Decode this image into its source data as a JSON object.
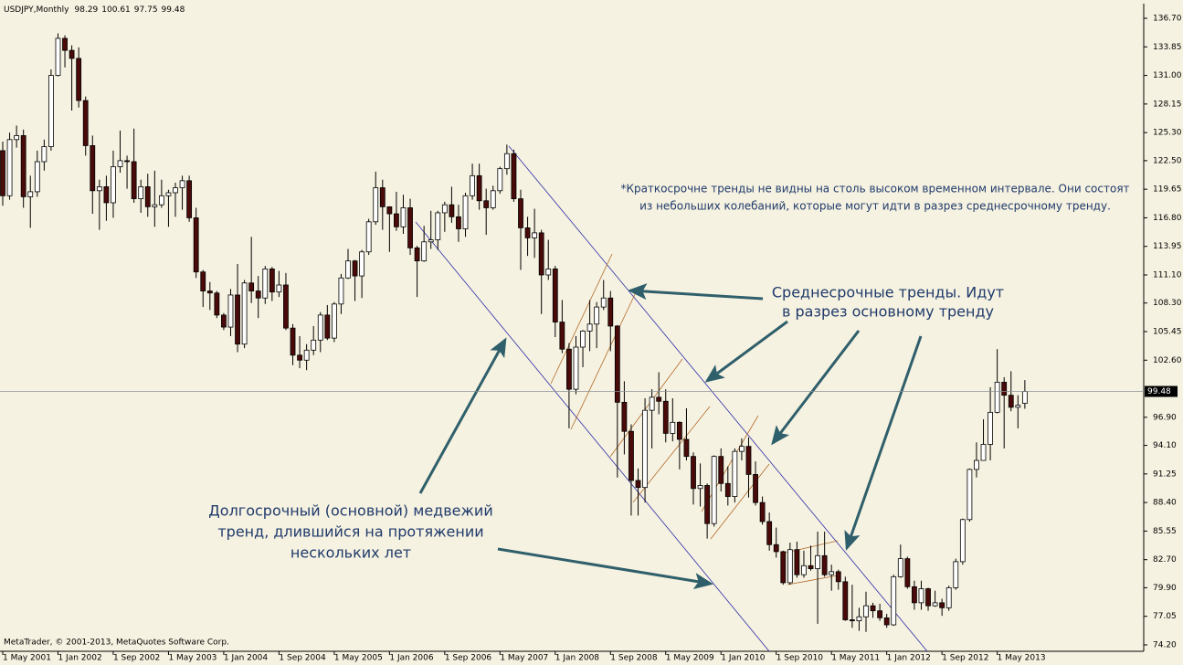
{
  "chart_data": {
    "type": "candlestick",
    "title": "USDJPY,Monthly",
    "credit": "MetaTrader, © 2001-2013, MetaQuotes Software Corp.",
    "categories": [
      "1 May 2001",
      null,
      null,
      null,
      null,
      null,
      null,
      null,
      "1 Jan 2002",
      null,
      null,
      null,
      null,
      null,
      null,
      null,
      "1 Sep 2002",
      null,
      null,
      null,
      null,
      null,
      null,
      null,
      "1 May 2003",
      null,
      null,
      null,
      null,
      null,
      null,
      null,
      "1 Jan 2004",
      null,
      null,
      null,
      null,
      null,
      null,
      null,
      "1 Sep 2004",
      null,
      null,
      null,
      null,
      null,
      null,
      null,
      "1 May 2005",
      null,
      null,
      null,
      null,
      null,
      null,
      null,
      "1 Jan 2006",
      null,
      null,
      null,
      null,
      null,
      null,
      null,
      "1 Sep 2006",
      null,
      null,
      null,
      null,
      null,
      null,
      null,
      "1 May 2007",
      null,
      null,
      null,
      null,
      null,
      null,
      null,
      "1 Jan 2008",
      null,
      null,
      null,
      null,
      null,
      null,
      null,
      "1 Sep 2008",
      null,
      null,
      null,
      null,
      null,
      null,
      null,
      "1 May 2009",
      null,
      null,
      null,
      null,
      null,
      null,
      null,
      "1 Jan 2010",
      null,
      null,
      null,
      null,
      null,
      null,
      null,
      "1 Sep 2010",
      null,
      null,
      null,
      null,
      null,
      null,
      null,
      "1 May 2011",
      null,
      null,
      null,
      null,
      null,
      null,
      null,
      "1 Jan 2012",
      null,
      null,
      null,
      null,
      null,
      null,
      null,
      "1 Sep 2012",
      null,
      null,
      null,
      null,
      null,
      null,
      null,
      "1 May 2013",
      null,
      null,
      null,
      null
    ],
    "open": [
      123.5,
      119.0,
      124.6,
      125.0,
      118.9,
      119.4,
      122.4,
      123.9,
      131.0,
      134.7,
      133.5,
      132.7,
      128.5,
      124.0,
      119.5,
      119.9,
      118.3,
      121.9,
      122.5,
      122.4,
      118.7,
      119.9,
      117.9,
      118.1,
      119.0,
      119.3,
      119.8,
      120.5,
      116.8,
      111.4,
      109.5,
      109.3,
      107.1,
      105.9,
      109.1,
      104.2,
      110.3,
      109.5,
      108.8,
      111.7,
      109.4,
      110.1,
      105.8,
      103.1,
      102.6,
      103.6,
      104.6,
      107.1,
      104.8,
      108.2,
      110.8,
      112.5,
      111.0,
      113.4,
      116.4,
      119.8,
      117.9,
      117.2,
      115.9,
      117.8,
      113.8,
      112.5,
      114.4,
      114.6,
      117.3,
      118.1,
      116.9,
      115.7,
      119.0,
      121.0,
      118.5,
      117.8,
      119.5,
      121.7,
      123.2,
      118.7,
      115.8,
      114.8,
      115.3,
      111.1,
      111.7,
      106.4,
      103.7,
      99.7,
      103.9,
      105.5,
      106.2,
      107.9,
      108.8,
      106.0,
      98.4,
      95.5,
      90.6,
      89.9,
      97.6,
      98.9,
      98.5,
      95.3,
      96.4,
      94.7,
      93.0,
      89.8,
      90.1,
      86.3,
      93.0,
      90.3,
      89.0,
      93.5,
      94.0,
      91.2,
      88.4,
      86.5,
      84.2,
      83.5,
      80.4,
      83.7,
      81.2,
      82.1,
      81.8,
      83.1,
      81.2,
      81.5,
      80.5,
      76.7,
      76.6,
      77.0,
      78.1,
      77.6,
      76.9,
      76.2,
      81.0,
      82.8,
      80.0,
      78.4,
      79.8,
      78.1,
      78.4,
      77.9,
      79.9,
      82.5,
      86.7,
      91.7,
      92.6,
      94.2,
      97.4,
      100.4,
      99.1,
      97.9,
      98.29
    ],
    "high": [
      124.4,
      125.3,
      126.0,
      125.6,
      121.0,
      123.5,
      124.6,
      131.6,
      135.2,
      135.0,
      134.0,
      133.8,
      128.9,
      125.0,
      120.6,
      121.0,
      123.5,
      125.5,
      123.0,
      125.7,
      120.6,
      121.2,
      121.5,
      120.6,
      119.6,
      120.3,
      121.0,
      121.0,
      117.8,
      111.6,
      110.4,
      109.5,
      107.3,
      109.7,
      112.2,
      110.6,
      114.9,
      111.0,
      112.0,
      111.9,
      111.5,
      111.3,
      106.2,
      105.0,
      104.2,
      106.0,
      107.4,
      108.1,
      108.4,
      111.2,
      113.7,
      112.6,
      113.6,
      116.7,
      121.4,
      120.6,
      117.9,
      119.4,
      119.1,
      118.7,
      114.0,
      116.0,
      117.5,
      117.5,
      118.4,
      119.9,
      118.1,
      119.3,
      122.2,
      122.2,
      119.7,
      120.0,
      121.9,
      124.1,
      123.6,
      119.6,
      116.9,
      117.7,
      115.6,
      114.6,
      112.0,
      108.6,
      104.3,
      105.0,
      105.6,
      108.6,
      108.4,
      110.6,
      109.5,
      106.1,
      100.5,
      96.2,
      91.8,
      98.8,
      99.7,
      101.4,
      99.7,
      98.8,
      96.5,
      97.8,
      93.4,
      92.3,
      90.3,
      93.1,
      93.8,
      92.0,
      93.8,
      94.8,
      94.9,
      92.5,
      89.0,
      87.4,
      85.9,
      83.6,
      84.4,
      84.5,
      83.6,
      84.1,
      85.5,
      85.5,
      82.2,
      81.7,
      81.0,
      80.2,
      77.9,
      79.5,
      78.4,
      78.3,
      77.3,
      81.2,
      84.2,
      83.0,
      80.6,
      80.6,
      79.9,
      79.6,
      78.8,
      80.1,
      82.8,
      86.8,
      91.8,
      94.4,
      96.7,
      99.9,
      103.7,
      100.9,
      101.5,
      99.1,
      100.61
    ],
    "low": [
      118.0,
      118.6,
      123.8,
      117.8,
      115.8,
      118.9,
      121.5,
      123.5,
      130.9,
      131.8,
      127.5,
      127.8,
      123.0,
      117.2,
      115.6,
      116.5,
      116.8,
      121.3,
      119.7,
      118.3,
      117.3,
      116.9,
      115.9,
      117.8,
      115.9,
      116.9,
      117.6,
      116.4,
      110.8,
      107.9,
      107.6,
      106.8,
      105.6,
      105.0,
      103.4,
      103.8,
      108.3,
      106.8,
      108.2,
      108.5,
      108.9,
      105.6,
      102.1,
      101.8,
      101.6,
      103.1,
      103.4,
      104.6,
      104.4,
      107.2,
      110.7,
      108.5,
      108.8,
      113.1,
      116.1,
      115.6,
      113.4,
      115.5,
      115.2,
      113.1,
      108.9,
      112.4,
      113.7,
      113.6,
      115.4,
      116.3,
      114.4,
      114.9,
      118.6,
      117.6,
      115.1,
      117.6,
      119.2,
      121.1,
      118.4,
      111.6,
      113.0,
      112.8,
      107.2,
      110.6,
      104.9,
      103.3,
      95.8,
      99.2,
      101.9,
      103.5,
      103.8,
      107.6,
      103.5,
      90.9,
      93.2,
      87.1,
      87.1,
      88.4,
      93.8,
      97.2,
      94.4,
      94.5,
      91.7,
      92.6,
      88.2,
      88.0,
      84.8,
      86.0,
      89.5,
      88.1,
      88.4,
      92.6,
      88.9,
      88.1,
      86.2,
      83.6,
      82.9,
      80.2,
      80.2,
      80.9,
      80.9,
      81.6,
      76.3,
      81.0,
      79.6,
      79.7,
      76.6,
      75.9,
      75.6,
      75.5,
      76.9,
      76.6,
      75.9,
      76.1,
      80.9,
      79.8,
      77.7,
      77.7,
      77.6,
      78.0,
      77.1,
      77.6,
      79.7,
      82.2,
      86.5,
      90.9,
      92.6,
      92.6,
      97.3,
      93.8,
      97.5,
      95.8,
      97.75
    ],
    "close": [
      119.0,
      124.6,
      125.0,
      118.9,
      119.4,
      122.4,
      123.9,
      131.0,
      134.7,
      133.5,
      132.7,
      128.5,
      124.0,
      119.5,
      119.9,
      118.3,
      121.9,
      122.5,
      122.4,
      118.7,
      119.9,
      117.9,
      118.1,
      119.0,
      119.3,
      119.8,
      120.5,
      116.8,
      111.4,
      109.5,
      109.3,
      107.1,
      105.9,
      109.1,
      104.2,
      110.3,
      109.5,
      108.8,
      111.7,
      109.4,
      110.1,
      105.8,
      103.1,
      102.6,
      103.6,
      104.6,
      107.1,
      104.8,
      108.2,
      110.8,
      112.5,
      111.0,
      113.4,
      116.4,
      119.8,
      117.9,
      117.2,
      115.9,
      117.8,
      113.8,
      112.5,
      114.4,
      114.6,
      117.3,
      118.1,
      116.9,
      115.7,
      119.0,
      121.0,
      118.5,
      117.8,
      119.5,
      121.7,
      123.2,
      118.7,
      115.8,
      114.8,
      115.3,
      111.1,
      111.7,
      106.4,
      103.7,
      99.7,
      103.9,
      105.5,
      106.2,
      107.9,
      108.8,
      106.0,
      98.4,
      95.5,
      90.6,
      89.9,
      97.6,
      98.9,
      98.5,
      95.3,
      96.4,
      94.7,
      93.0,
      89.8,
      90.1,
      86.3,
      93.0,
      90.3,
      89.0,
      93.5,
      94.0,
      91.2,
      88.4,
      86.5,
      84.2,
      83.5,
      80.4,
      83.7,
      81.2,
      82.1,
      81.8,
      83.1,
      81.2,
      81.5,
      80.5,
      76.7,
      76.6,
      77.0,
      78.1,
      77.6,
      76.9,
      76.2,
      81.0,
      82.8,
      80.0,
      78.4,
      79.8,
      78.1,
      78.4,
      77.9,
      79.9,
      82.5,
      86.7,
      91.7,
      92.6,
      94.2,
      97.4,
      100.4,
      99.1,
      97.9,
      98.1,
      99.48
    ],
    "up_color": "#ffffff",
    "down_color": "#4a0a0a",
    "ylim": [
      73.56,
      138.07
    ],
    "yticks": [
      {
        "value": 136.7,
        "label": "136.70"
      },
      133.85,
      {
        "value": 131,
        "label": "131.00"
      },
      128.15,
      {
        "value": 125.3,
        "label": "125.30"
      },
      {
        "value": 122.5,
        "label": "122.50"
      },
      119.65,
      {
        "value": 116.8,
        "label": "116.80"
      },
      113.95,
      {
        "value": 111.1,
        "label": "111.10"
      },
      {
        "value": 108.3,
        "label": "108.30"
      },
      105.45,
      {
        "value": 102.6,
        "label": "102.60"
      },
      {
        "value": 96.9,
        "label": "96.90"
      },
      {
        "value": 94.1,
        "label": "94.10"
      },
      91.25,
      {
        "value": 88.4,
        "label": "88.40"
      },
      85.55,
      {
        "value": 82.7,
        "label": "82.70"
      },
      {
        "value": 79.9,
        "label": "79.90"
      },
      77.05,
      {
        "value": 74.2,
        "label": "74.20"
      }
    ],
    "annotations": {
      "short_term": [
        "*Краткосрочне тренды не видны на столь высоком временном интервале. Они состоят",
        "из небольших колебаний, которые могут идти в разрез среднесрочному тренду."
      ],
      "medium_term": [
        "Среднесрочные тренды. Идут",
        "в разрез основному тренду"
      ],
      "long_term": [
        "Долгосрочный (основной) медвежий",
        "тренд, длившийся на протяжении",
        "нескольких лет"
      ]
    }
  }
}
